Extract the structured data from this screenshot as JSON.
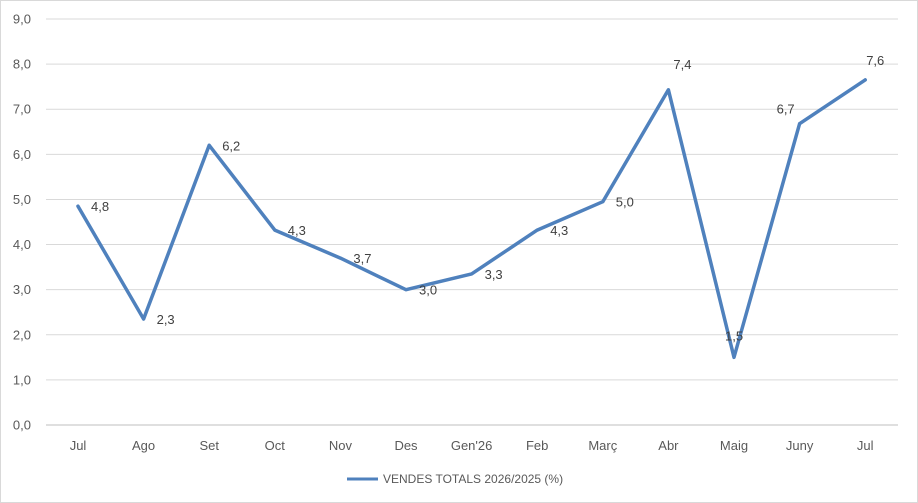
{
  "chart_data": {
    "type": "line",
    "categories": [
      "Jul",
      "Ago",
      "Set",
      "Oct",
      "Nov",
      "Des",
      "Gen'26",
      "Feb",
      "Març",
      "Abr",
      "Maig",
      "Juny",
      "Jul"
    ],
    "series": [
      {
        "name": "VENDES TOTALS 2026/2025 (%)",
        "values": [
          4.85,
          2.35,
          6.2,
          4.32,
          3.7,
          3.0,
          3.35,
          4.32,
          4.95,
          7.43,
          1.5,
          6.68,
          7.65
        ],
        "labels": [
          "4,8",
          "2,3",
          "6,2",
          "4,3",
          "3,7",
          "3,0",
          "3,3",
          "4,3",
          "5,0",
          "7,4",
          "1,5",
          "6,7",
          "7,6"
        ],
        "color": "#4f81bd"
      }
    ],
    "y_ticks": [
      "0,0",
      "1,0",
      "2,0",
      "3,0",
      "4,0",
      "5,0",
      "6,0",
      "7,0",
      "8,0",
      "9,0"
    ],
    "ylim": [
      0,
      9
    ],
    "grid": true,
    "legend_position": "bottom",
    "gridline_color": "#d9d9d9",
    "axis_color": "#bfbfbf"
  }
}
